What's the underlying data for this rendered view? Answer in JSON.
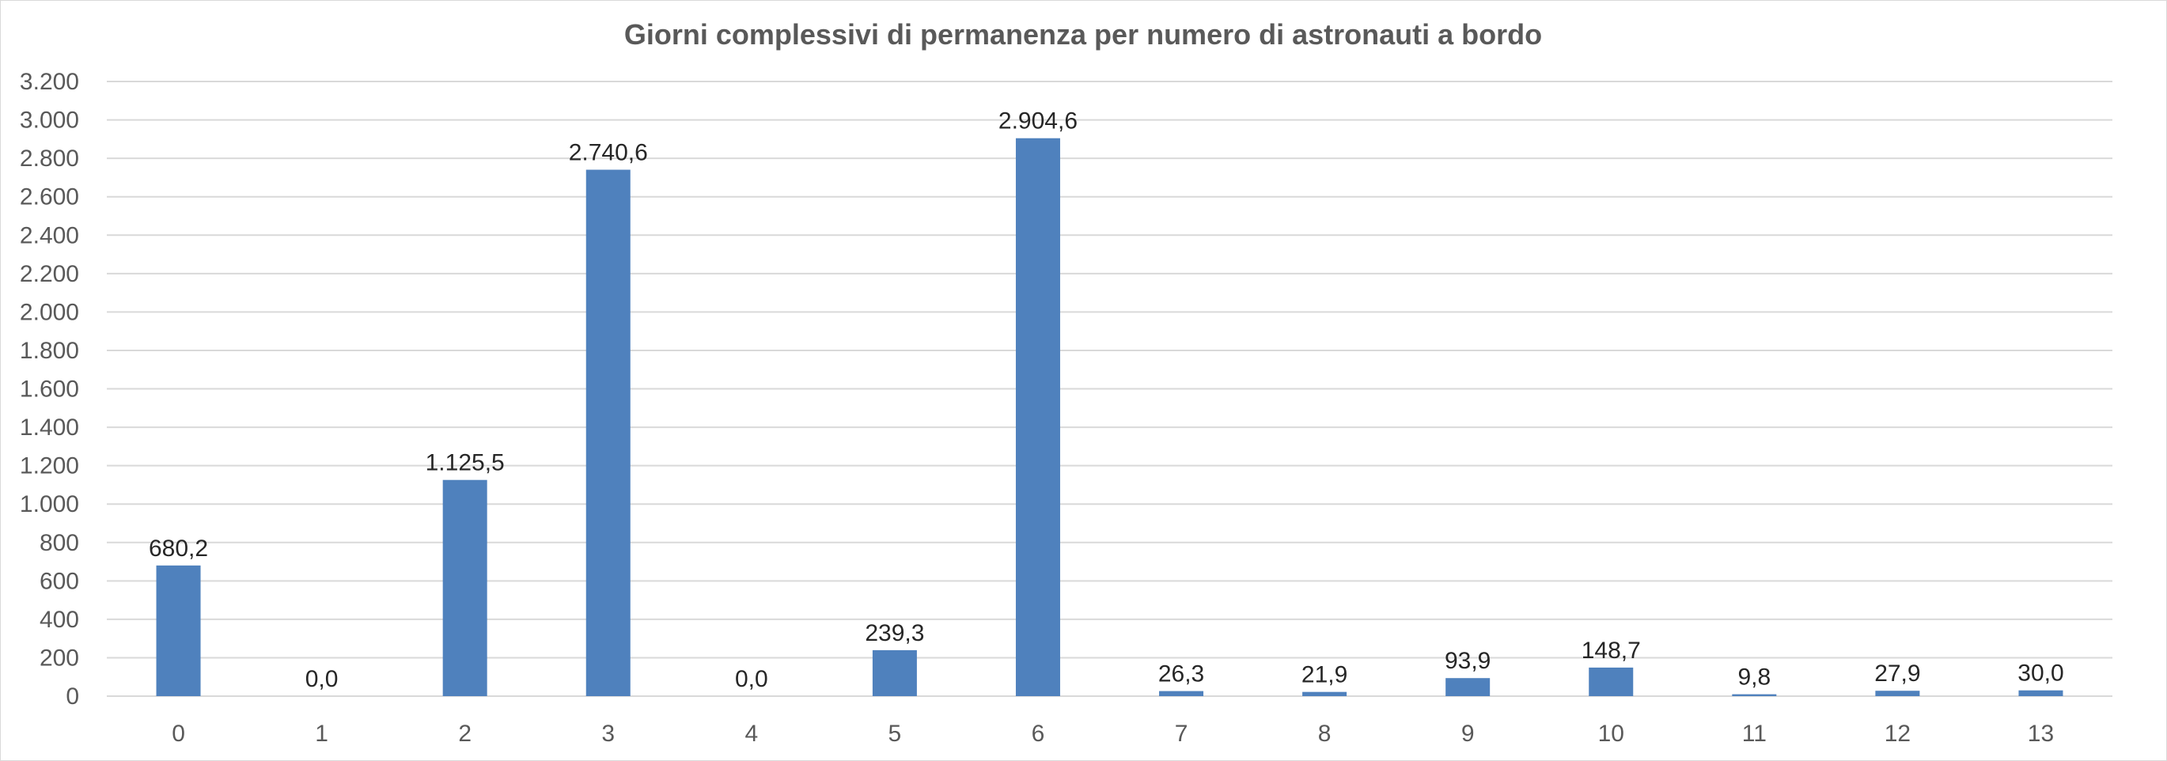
{
  "chart_data": {
    "type": "bar",
    "title": "Giorni complessivi di permanenza per numero di astronauti a bordo",
    "xlabel": "",
    "ylabel": "",
    "categories": [
      "0",
      "1",
      "2",
      "3",
      "4",
      "5",
      "6",
      "7",
      "8",
      "9",
      "10",
      "11",
      "12",
      "13"
    ],
    "values": [
      680.2,
      0.0,
      1125.5,
      2740.6,
      0.0,
      239.3,
      2904.6,
      26.3,
      21.9,
      93.9,
      148.7,
      9.8,
      27.9,
      30.0
    ],
    "data_labels": [
      "680,2",
      "0,0",
      "1.125,5",
      "2.740,6",
      "0,0",
      "239,3",
      "2.904,6",
      "26,3",
      "21,9",
      "93,9",
      "148,7",
      "9,8",
      "27,9",
      "30,0"
    ],
    "ylim": [
      0,
      3200
    ],
    "y_ticks": [
      0,
      200,
      400,
      600,
      800,
      1000,
      1200,
      1400,
      1600,
      1800,
      2000,
      2200,
      2400,
      2600,
      2800,
      3000,
      3200
    ],
    "y_tick_labels": [
      "0",
      "200",
      "400",
      "600",
      "800",
      "1.000",
      "1.200",
      "1.400",
      "1.600",
      "1.800",
      "2.000",
      "2.200",
      "2.400",
      "2.600",
      "2.800",
      "3.000",
      "3.200"
    ],
    "grid": true,
    "legend": "none",
    "colors": {
      "bar": "#4f81bd",
      "grid": "#d9d9d9",
      "title": "#595959",
      "tick": "#595959",
      "data_label": "#262626"
    }
  }
}
